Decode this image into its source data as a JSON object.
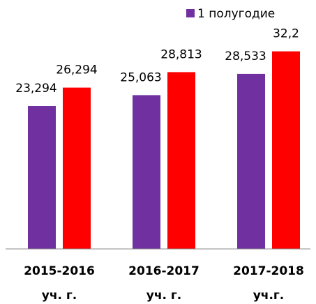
{
  "chart_data": {
    "type": "bar",
    "categories": [
      "2015-2016\nуч. г.",
      "2016-2017\nуч. г.",
      "2017-2018\nуч.г."
    ],
    "series": [
      {
        "name": "1 полугодие",
        "color": "#7030a0",
        "values": [
          23.294,
          25.063,
          28.533
        ],
        "value_labels": [
          "23,294",
          "25,063",
          "28,533"
        ]
      },
      {
        "color": "#ff0000",
        "values": [
          26.294,
          28.813,
          32.2
        ],
        "value_labels": [
          "26,294",
          "28,813",
          "32,2"
        ]
      }
    ],
    "ylim": [
      0,
      40
    ],
    "grid": false
  }
}
